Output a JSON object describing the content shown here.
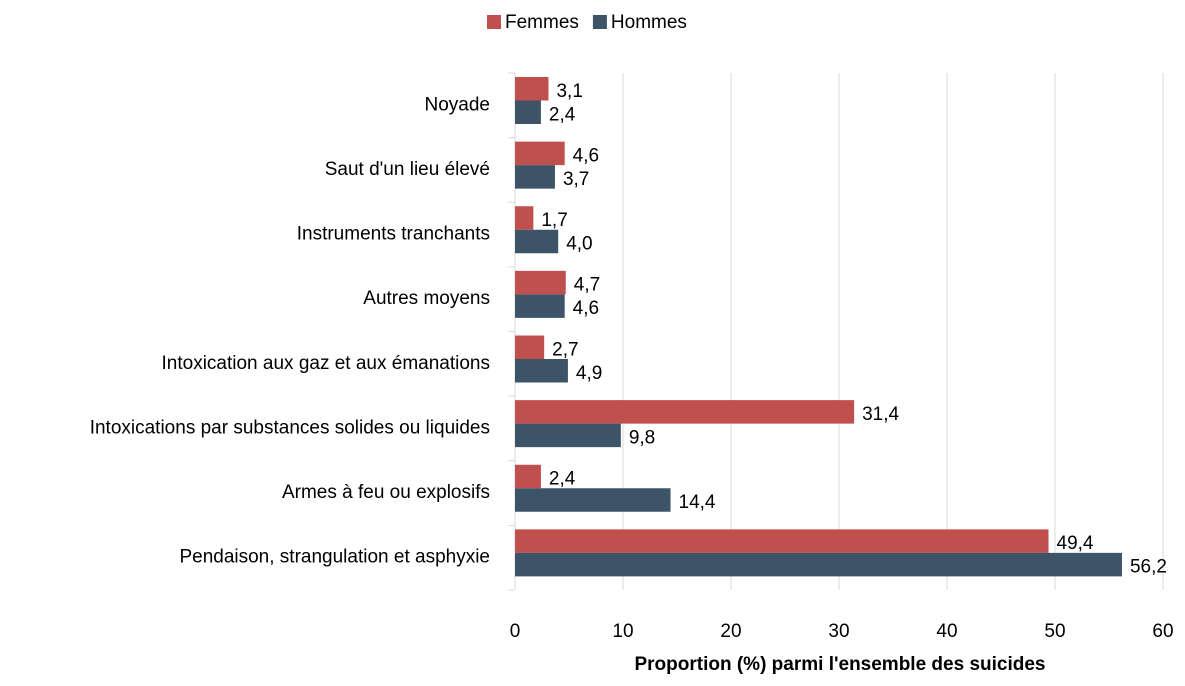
{
  "chart_data": {
    "type": "barh",
    "categories": [
      "Noyade",
      "Saut d'un lieu élevé",
      "Instruments tranchants",
      "Autres moyens",
      "Intoxication aux gaz et aux émanations",
      "Intoxications par substances solides ou liquides",
      "Armes à feu ou explosifs",
      "Pendaison, strangulation et asphyxie"
    ],
    "series": [
      {
        "name": "Femmes",
        "color": "#c0504d",
        "values": [
          3.1,
          4.6,
          1.7,
          4.7,
          2.7,
          31.4,
          2.4,
          49.4
        ],
        "value_labels": [
          "3,1",
          "4,6",
          "1,7",
          "4,7",
          "2,7",
          "31,4",
          "2,4",
          "49,4"
        ]
      },
      {
        "name": "Hommes",
        "color": "#3d5468",
        "values": [
          2.4,
          3.7,
          4.0,
          4.6,
          4.9,
          9.8,
          14.4,
          56.2
        ],
        "value_labels": [
          "2,4",
          "3,7",
          "4,0",
          "4,6",
          "4,9",
          "9,8",
          "14,4",
          "56,2"
        ]
      }
    ],
    "xlabel": "Proportion (%) parmi l'ensemble des suicides",
    "xlim": [
      0,
      60
    ],
    "xticks": [
      0,
      10,
      20,
      30,
      40,
      50,
      60
    ],
    "grid": true,
    "legend": "top"
  }
}
